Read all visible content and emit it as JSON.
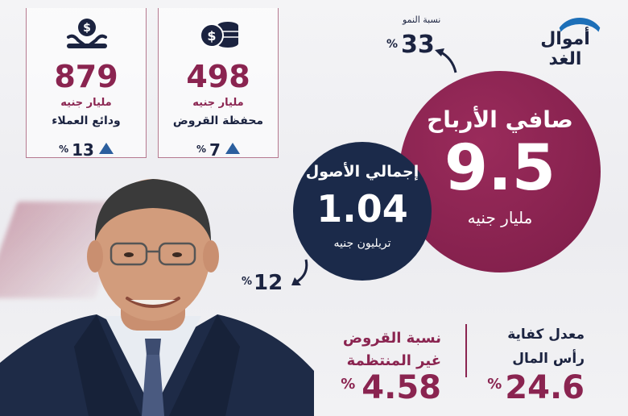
{
  "brand": {
    "logo_text": "أموال الغد"
  },
  "colors": {
    "maroon": "#8a2450",
    "navy": "#1b2a4a",
    "accent_blue": "#2c5f9e"
  },
  "loans_card": {
    "icon": "coins-icon",
    "value": "498",
    "unit": "مليار جنيه",
    "label": "محفظة القروض",
    "growth": "7",
    "percent_sign": "%"
  },
  "deposits_card": {
    "icon": "money-hand-icon",
    "value": "879",
    "unit": "مليار جنيه",
    "label": "ودائع العملاء",
    "growth": "13",
    "percent_sign": "%"
  },
  "net_profit": {
    "title": "صافي الأرباح",
    "value": "9.5",
    "unit": "مليار جنيه",
    "growth_label": "نسبة النمو",
    "growth": "33",
    "percent_sign": "%"
  },
  "total_assets": {
    "title": "إجمالي الأصول",
    "value": "1.04",
    "unit": "تريليون جنيه",
    "growth": "12",
    "percent_sign": "%"
  },
  "npl_ratio": {
    "label_line1": "نسبة القروض",
    "label_line2": "غير المنتظمة",
    "value": "4.58",
    "percent_sign": "%"
  },
  "capital_adequacy": {
    "label_line1": "معدل كفاية",
    "label_line2": "رأس المال",
    "value": "24.6",
    "percent_sign": "%"
  }
}
